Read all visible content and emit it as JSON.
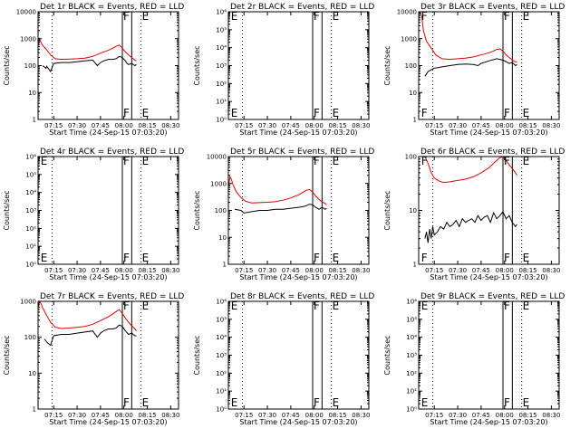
{
  "colors": {
    "events": "#000000",
    "lld": "#dd0000",
    "axis": "#000000"
  },
  "chart_data": [
    {
      "type": "line",
      "title": "Det 1r BLACK = Events, RED = LLD",
      "xlabel": "Start Time (24-Sep-15 07:03:20)",
      "ylabel": "Counts/sec",
      "xlim": [
        0,
        90
      ],
      "ylim": [
        1,
        10000
      ],
      "log_y": true,
      "xticks": [
        [
          10,
          "07:15"
        ],
        [
          25,
          "07:30"
        ],
        [
          40,
          "07:45"
        ],
        [
          55,
          "08:00"
        ],
        [
          70,
          "08:15"
        ],
        [
          85,
          "08:30"
        ]
      ],
      "yticks": [
        [
          1,
          "1"
        ],
        [
          10,
          "10"
        ],
        [
          100,
          "100"
        ],
        [
          1000,
          "1000"
        ],
        [
          10000,
          "10000"
        ]
      ],
      "dotted_x": [
        9,
        66
      ],
      "solid_x": [
        54,
        60
      ],
      "markers": [
        [
          "F",
          54
        ],
        [
          "E",
          66
        ]
      ],
      "series": [
        {
          "color": "events",
          "x": [
            3,
            5,
            5.5,
            8,
            10,
            15,
            20,
            25,
            30,
            35,
            38,
            40,
            42,
            45,
            48,
            50,
            52,
            54,
            56,
            57,
            58,
            60,
            62,
            63
          ],
          "y": [
            100,
            80,
            95,
            60,
            120,
            130,
            130,
            140,
            150,
            160,
            100,
            130,
            150,
            170,
            170,
            180,
            220,
            200,
            150,
            120,
            110,
            120,
            100,
            110
          ]
        },
        {
          "color": "lld",
          "x": [
            0,
            1,
            2,
            3,
            5,
            8,
            11,
            15,
            20,
            25,
            30,
            35,
            40,
            45,
            48,
            50,
            52,
            54,
            56,
            58,
            60,
            62,
            63
          ],
          "y": [
            600,
            1000,
            700,
            550,
            420,
            250,
            180,
            170,
            175,
            180,
            190,
            220,
            290,
            370,
            450,
            520,
            580,
            450,
            320,
            250,
            200,
            160,
            150
          ]
        }
      ]
    },
    {
      "type": "line",
      "title": "Det 2r BLACK = Events, RED = LLD",
      "xlabel": "Start Time (24-Sep-15 07:03:20)",
      "ylabel": "Counts/sec",
      "xlim": [
        0,
        90
      ],
      "ylim": [
        1,
        1000000
      ],
      "log_y": true,
      "xticks": [
        [
          10,
          "07:15"
        ],
        [
          25,
          "07:30"
        ],
        [
          40,
          "07:45"
        ],
        [
          55,
          "08:00"
        ],
        [
          70,
          "08:15"
        ],
        [
          85,
          "08:30"
        ]
      ],
      "yticks": [
        [
          1,
          "10⁰"
        ],
        [
          10,
          "10¹"
        ],
        [
          100,
          "10²"
        ],
        [
          1000,
          "10³"
        ],
        [
          10000,
          "10⁴"
        ],
        [
          100000,
          "10⁵"
        ],
        [
          1000000,
          "10⁶"
        ]
      ],
      "dotted_x": [
        9,
        66
      ],
      "solid_x": [
        54,
        60
      ],
      "markers": [
        [
          "E",
          1
        ],
        [
          "F",
          54
        ],
        [
          "E",
          66
        ]
      ],
      "series": []
    },
    {
      "type": "line",
      "title": "Det 3r BLACK = Events, RED = LLD",
      "xlabel": "Start Time (24-Sep-15 07:03:20)",
      "ylabel": "Counts/sec",
      "xlim": [
        0,
        90
      ],
      "ylim": [
        1,
        10000
      ],
      "log_y": true,
      "xticks": [
        [
          10,
          "07:15"
        ],
        [
          25,
          "07:30"
        ],
        [
          40,
          "07:45"
        ],
        [
          55,
          "08:00"
        ],
        [
          70,
          "08:15"
        ],
        [
          85,
          "08:30"
        ]
      ],
      "yticks": [
        [
          1,
          "1"
        ],
        [
          10,
          "10"
        ],
        [
          100,
          "100"
        ],
        [
          1000,
          "1000"
        ],
        [
          10000,
          "10000"
        ]
      ],
      "dotted_x": [
        9,
        66
      ],
      "solid_x": [
        54,
        60
      ],
      "markers": [
        [
          "F",
          1
        ],
        [
          "F",
          54
        ],
        [
          "E",
          66
        ]
      ],
      "series": [
        {
          "color": "events",
          "x": [
            4,
            6,
            8,
            10,
            15,
            20,
            25,
            30,
            35,
            38,
            40,
            45,
            50,
            54,
            56,
            58,
            60,
            62,
            63
          ],
          "y": [
            40,
            60,
            70,
            80,
            90,
            100,
            110,
            115,
            110,
            100,
            120,
            150,
            180,
            160,
            140,
            120,
            130,
            100,
            110
          ]
        },
        {
          "color": "lld",
          "x": [
            0,
            1,
            2,
            3,
            5,
            8,
            11,
            15,
            20,
            25,
            30,
            35,
            40,
            45,
            48,
            50,
            52,
            54,
            56,
            58,
            60,
            62,
            63
          ],
          "y": [
            9000,
            9500,
            7000,
            2000,
            800,
            450,
            250,
            180,
            170,
            180,
            190,
            210,
            250,
            300,
            350,
            400,
            420,
            350,
            250,
            200,
            160,
            140,
            130
          ]
        }
      ]
    },
    {
      "type": "line",
      "title": "Det 4r BLACK = Events, RED = LLD",
      "xlabel": "Start Time (24-Sep-15 07:03:20)",
      "ylabel": "Counts/sec",
      "xlim": [
        0,
        90
      ],
      "ylim": [
        1,
        1000000
      ],
      "log_y": true,
      "xticks": [
        [
          10,
          "07:15"
        ],
        [
          25,
          "07:30"
        ],
        [
          40,
          "07:45"
        ],
        [
          55,
          "08:00"
        ],
        [
          70,
          "08:15"
        ],
        [
          85,
          "08:30"
        ]
      ],
      "yticks": [
        [
          1,
          "10⁰"
        ],
        [
          10,
          "10¹"
        ],
        [
          100,
          "10²"
        ],
        [
          1000,
          "10³"
        ],
        [
          10000,
          "10⁴"
        ],
        [
          100000,
          "10⁵"
        ],
        [
          1000000,
          "10⁶"
        ]
      ],
      "dotted_x": [
        9,
        66
      ],
      "solid_x": [
        54,
        60
      ],
      "markers": [
        [
          "E",
          1
        ],
        [
          "F",
          54
        ],
        [
          "E",
          66
        ]
      ],
      "series": []
    },
    {
      "type": "line",
      "title": "Det 5r BLACK = Events, RED = LLD",
      "xlabel": "Start Time (24-Sep-15 07:03:20)",
      "ylabel": "Counts/sec",
      "xlim": [
        0,
        90
      ],
      "ylim": [
        1,
        10000
      ],
      "log_y": true,
      "xticks": [
        [
          10,
          "07:15"
        ],
        [
          25,
          "07:30"
        ],
        [
          40,
          "07:45"
        ],
        [
          55,
          "08:00"
        ],
        [
          70,
          "08:15"
        ],
        [
          85,
          "08:30"
        ]
      ],
      "yticks": [
        [
          1,
          "1"
        ],
        [
          10,
          "10"
        ],
        [
          100,
          "100"
        ],
        [
          1000,
          "1000"
        ],
        [
          10000,
          "10000"
        ]
      ],
      "dotted_x": [
        9,
        66
      ],
      "solid_x": [
        54,
        60
      ],
      "markers": [
        [
          "F",
          54
        ],
        [
          "E",
          66
        ]
      ],
      "series": [
        {
          "color": "events",
          "x": [
            4,
            8,
            10,
            15,
            20,
            25,
            30,
            35,
            40,
            45,
            48,
            50,
            52,
            54,
            56,
            58,
            60,
            62,
            63
          ],
          "y": [
            110,
            100,
            80,
            90,
            100,
            100,
            110,
            110,
            120,
            130,
            140,
            150,
            170,
            160,
            130,
            110,
            130,
            110,
            120
          ]
        },
        {
          "color": "lld",
          "x": [
            0,
            1,
            2,
            3,
            5,
            8,
            11,
            15,
            20,
            25,
            30,
            35,
            40,
            45,
            48,
            50,
            52,
            54,
            56,
            58,
            60,
            62,
            63
          ],
          "y": [
            700,
            1800,
            1400,
            900,
            500,
            300,
            220,
            190,
            195,
            200,
            210,
            240,
            290,
            380,
            480,
            560,
            600,
            480,
            340,
            260,
            210,
            180,
            160
          ]
        }
      ]
    },
    {
      "type": "line",
      "title": "Det 6r BLACK = Events, RED = LLD",
      "xlabel": "Start Time (24-Sep-15 07:03:20)",
      "ylabel": "Counts/sec",
      "xlim": [
        0,
        90
      ],
      "ylim": [
        1,
        100
      ],
      "log_y": true,
      "xticks": [
        [
          10,
          "07:15"
        ],
        [
          25,
          "07:30"
        ],
        [
          40,
          "07:45"
        ],
        [
          55,
          "08:00"
        ],
        [
          70,
          "08:15"
        ],
        [
          85,
          "08:30"
        ]
      ],
      "yticks": [
        [
          1,
          "1"
        ],
        [
          10,
          "10"
        ],
        [
          100,
          "100"
        ]
      ],
      "dotted_x": [
        9,
        66
      ],
      "solid_x": [
        54,
        60
      ],
      "markers": [
        [
          "F",
          1
        ],
        [
          "F",
          54
        ],
        [
          "E",
          66
        ]
      ],
      "series": [
        {
          "color": "events",
          "x": [
            4,
            5,
            6,
            7,
            8,
            9,
            10,
            12,
            14,
            16,
            18,
            20,
            22,
            24,
            26,
            28,
            30,
            32,
            34,
            36,
            38,
            40,
            42,
            44,
            46,
            48,
            50,
            52,
            54,
            56,
            58,
            60,
            62,
            63
          ],
          "y": [
            3,
            4,
            2.5,
            4.5,
            3,
            5,
            3.5,
            4,
            5,
            4.5,
            6,
            5,
            5.5,
            6.5,
            5,
            7,
            6,
            6.5,
            7,
            6,
            8,
            6.5,
            7.5,
            8,
            6,
            9,
            7,
            8,
            9.5,
            7,
            8,
            6,
            5,
            5.5
          ]
        },
        {
          "color": "lld",
          "x": [
            4,
            6,
            8,
            10,
            13,
            16,
            20,
            25,
            30,
            35,
            40,
            45,
            48,
            50,
            52,
            54,
            56,
            58,
            60,
            62,
            63
          ],
          "y": [
            100,
            75,
            50,
            40,
            35,
            33,
            34,
            36,
            38,
            42,
            50,
            62,
            75,
            85,
            95,
            100,
            85,
            70,
            60,
            50,
            45
          ]
        }
      ]
    },
    {
      "type": "line",
      "title": "Det 7r BLACK = Events, RED = LLD",
      "xlabel": "Start Time (24-Sep-15 07:03:20)",
      "ylabel": "Counts/sec",
      "xlim": [
        0,
        90
      ],
      "ylim": [
        1,
        1000
      ],
      "log_y": true,
      "xticks": [
        [
          10,
          "07:15"
        ],
        [
          25,
          "07:30"
        ],
        [
          40,
          "07:45"
        ],
        [
          55,
          "08:00"
        ],
        [
          70,
          "08:15"
        ],
        [
          85,
          "08:30"
        ]
      ],
      "yticks": [
        [
          1,
          "1"
        ],
        [
          10,
          "10"
        ],
        [
          100,
          "100"
        ],
        [
          1000,
          "1000"
        ]
      ],
      "dotted_x": [
        9,
        66
      ],
      "solid_x": [
        54,
        60
      ],
      "markers": [
        [
          "F",
          54
        ],
        [
          "E",
          66
        ]
      ],
      "series": [
        {
          "color": "events",
          "x": [
            4,
            6,
            8,
            10,
            15,
            20,
            25,
            30,
            35,
            38,
            40,
            42,
            45,
            48,
            50,
            52,
            54,
            56,
            58,
            60,
            62,
            63
          ],
          "y": [
            90,
            70,
            60,
            110,
            120,
            120,
            130,
            140,
            150,
            100,
            130,
            150,
            170,
            170,
            180,
            220,
            200,
            150,
            120,
            130,
            110,
            110
          ]
        },
        {
          "color": "lld",
          "x": [
            0,
            1,
            2,
            3,
            5,
            8,
            11,
            15,
            20,
            25,
            30,
            35,
            40,
            45,
            48,
            50,
            52,
            54,
            56,
            58,
            60,
            62,
            63
          ],
          "y": [
            700,
            1000,
            850,
            650,
            450,
            260,
            190,
            175,
            180,
            190,
            200,
            230,
            290,
            370,
            450,
            520,
            590,
            460,
            340,
            260,
            210,
            170,
            150
          ]
        }
      ]
    },
    {
      "type": "line",
      "title": "Det 8r BLACK = Events, RED = LLD",
      "xlabel": "Start Time (24-Sep-15 07:03:20)",
      "ylabel": "Counts/sec",
      "xlim": [
        0,
        90
      ],
      "ylim": [
        1,
        1000000
      ],
      "log_y": true,
      "xticks": [
        [
          10,
          "07:15"
        ],
        [
          25,
          "07:30"
        ],
        [
          40,
          "07:45"
        ],
        [
          55,
          "08:00"
        ],
        [
          70,
          "08:15"
        ],
        [
          85,
          "08:30"
        ]
      ],
      "yticks": [
        [
          1,
          "10⁰"
        ],
        [
          10,
          "10¹"
        ],
        [
          100,
          "10²"
        ],
        [
          1000,
          "10³"
        ],
        [
          10000,
          "10⁴"
        ],
        [
          100000,
          "10⁵"
        ],
        [
          1000000,
          "10⁶"
        ]
      ],
      "dotted_x": [
        9,
        66
      ],
      "solid_x": [
        54,
        60
      ],
      "markers": [
        [
          "E",
          1
        ],
        [
          "F",
          54
        ],
        [
          "E",
          66
        ]
      ],
      "series": []
    },
    {
      "type": "line",
      "title": "Det 9r BLACK = Events, RED = LLD",
      "xlabel": "Start Time (24-Sep-15 07:03:20)",
      "ylabel": "Counts/sec",
      "xlim": [
        0,
        90
      ],
      "ylim": [
        1,
        1000000
      ],
      "log_y": true,
      "xticks": [
        [
          10,
          "07:15"
        ],
        [
          25,
          "07:30"
        ],
        [
          40,
          "07:45"
        ],
        [
          55,
          "08:00"
        ],
        [
          70,
          "08:15"
        ],
        [
          85,
          "08:30"
        ]
      ],
      "yticks": [
        [
          1,
          "10⁰"
        ],
        [
          10,
          "10¹"
        ],
        [
          100,
          "10²"
        ],
        [
          1000,
          "10³"
        ],
        [
          10000,
          "10⁴"
        ],
        [
          100000,
          "10⁵"
        ],
        [
          1000000,
          "10⁶"
        ]
      ],
      "dotted_x": [
        9,
        66
      ],
      "solid_x": [
        54,
        60
      ],
      "markers": [
        [
          "E",
          1
        ],
        [
          "F",
          54
        ],
        [
          "E",
          66
        ]
      ],
      "series": []
    }
  ]
}
